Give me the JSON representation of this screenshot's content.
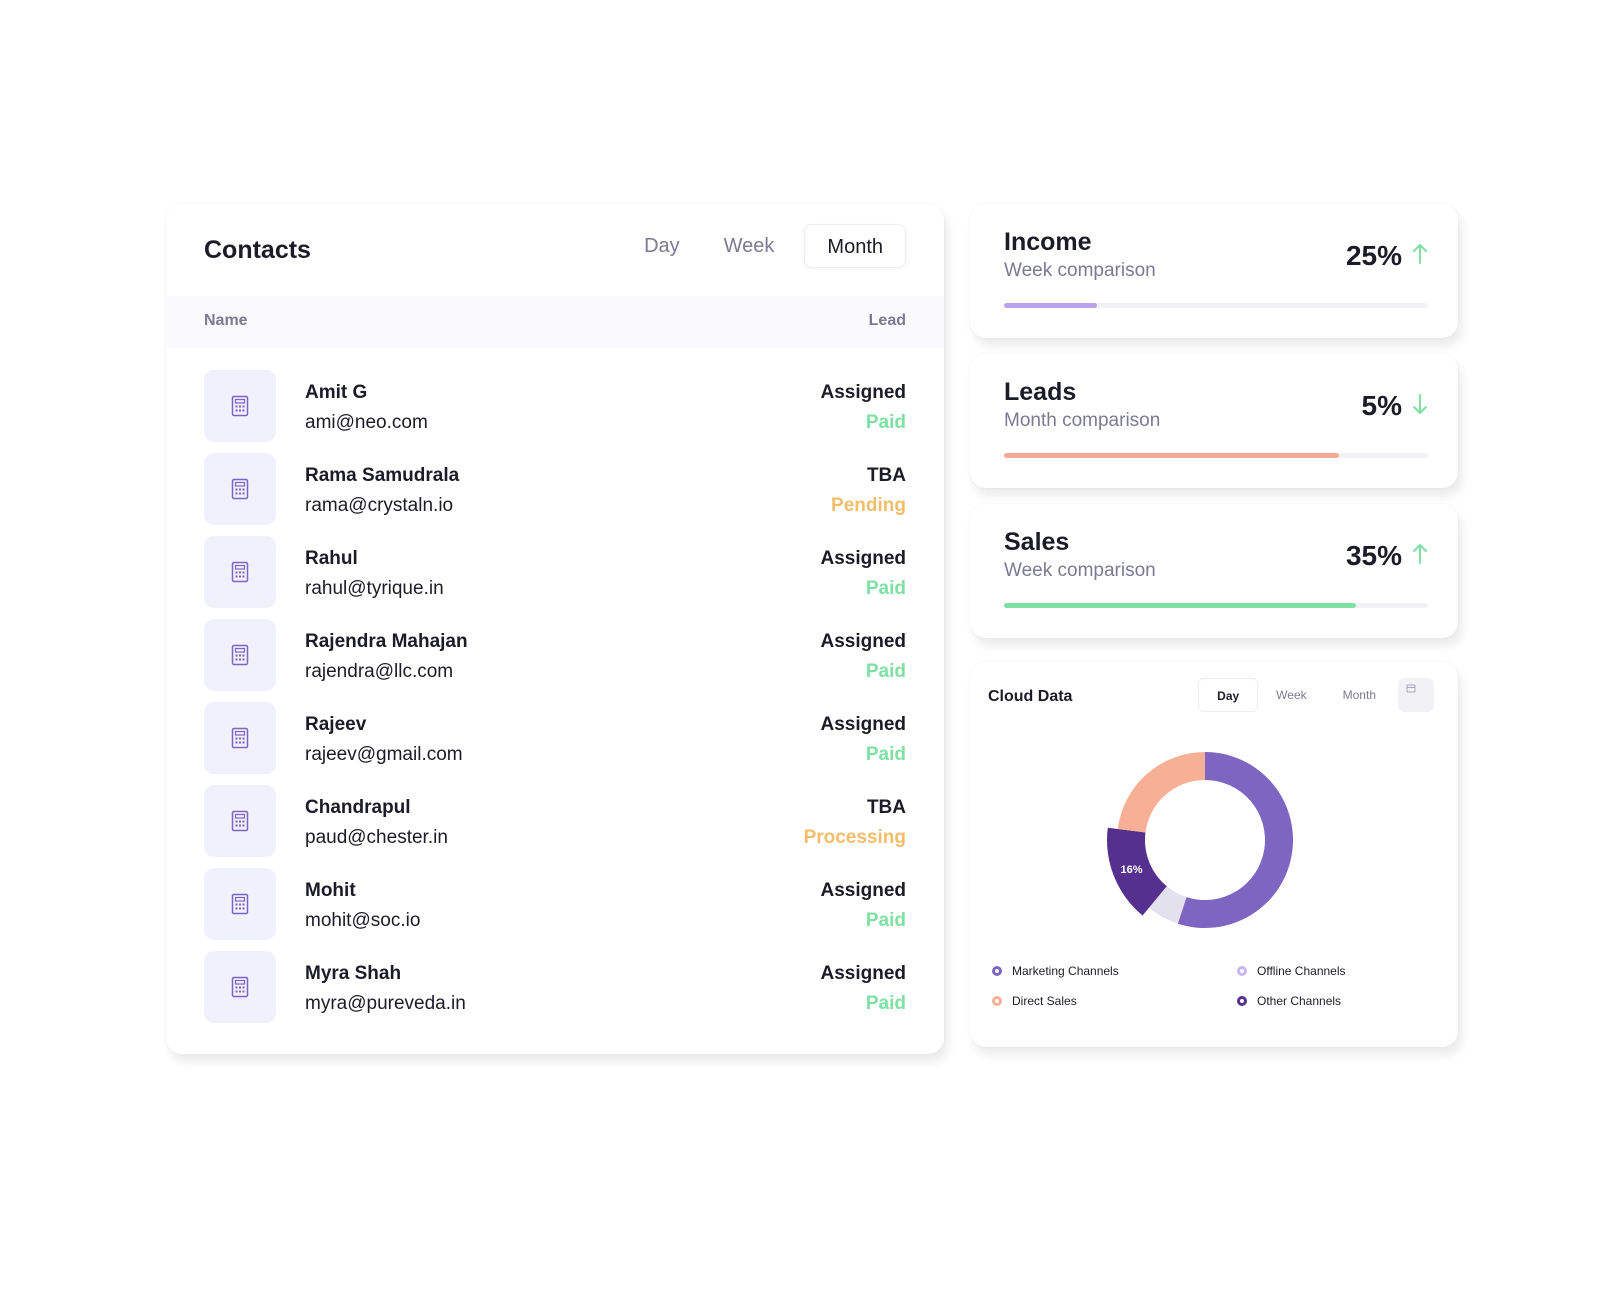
{
  "contacts": {
    "title": "Contacts",
    "tabs": [
      "Day",
      "Week",
      "Month"
    ],
    "active_tab": "Month",
    "columns": {
      "name": "Name",
      "lead": "Lead"
    },
    "rows": [
      {
        "name": "Amit G",
        "email": "ami@neo.com",
        "lead": "Assigned",
        "status": "Paid"
      },
      {
        "name": "Rama Samudrala",
        "email": "rama@crystaln.io",
        "lead": "TBA",
        "status": "Pending"
      },
      {
        "name": "Rahul",
        "email": "rahul@tyrique.in",
        "lead": "Assigned",
        "status": "Paid"
      },
      {
        "name": "Rajendra Mahajan",
        "email": "rajendra@llc.com",
        "lead": "Assigned",
        "status": "Paid"
      },
      {
        "name": "Rajeev",
        "email": "rajeev@gmail.com",
        "lead": "Assigned",
        "status": "Paid"
      },
      {
        "name": "Chandrapul",
        "email": "paud@chester.in",
        "lead": "TBA",
        "status": "Processing"
      },
      {
        "name": "Mohit",
        "email": "mohit@soc.io",
        "lead": "Assigned",
        "status": "Paid"
      },
      {
        "name": "Myra Shah",
        "email": "myra@pureveda.in",
        "lead": "Assigned",
        "status": "Paid"
      }
    ],
    "row_icon": "calculator-icon",
    "status_colors": {
      "Paid": "#7fe0a4",
      "Pending": "#f2bd6d",
      "Processing": "#f2bd6d"
    }
  },
  "stats": {
    "income": {
      "title": "Income",
      "subtitle": "Week comparison",
      "value": "25%",
      "trend": "up",
      "progress": 0.22,
      "color": "#b9a3ec",
      "arrow_color": "#7fe0a4"
    },
    "leads": {
      "title": "Leads",
      "subtitle": "Month comparison",
      "value": "5%",
      "trend": "down",
      "progress": 0.79,
      "color": "#f7ab94",
      "arrow_color": "#7fe0a4"
    },
    "sales": {
      "title": "Sales",
      "subtitle": "Week comparison",
      "value": "35%",
      "trend": "up",
      "progress": 0.83,
      "color": "#7fe0a4",
      "arrow_color": "#7fe0a4"
    }
  },
  "cloud": {
    "title": "Cloud Data",
    "tabs": [
      "Day",
      "Week",
      "Month"
    ],
    "active_tab": "Day",
    "calendar_icon": "calendar-icon",
    "slice_label": "16%"
  },
  "chart_data": {
    "type": "pie",
    "title": "",
    "slices": [
      {
        "name": "Marketing Channels",
        "value": 55,
        "color": "#7f65c2"
      },
      {
        "name": "Offline Channels",
        "value": 6,
        "color": "#e3e1ee"
      },
      {
        "name": "Other Channels",
        "value": 16,
        "color": "#56308e"
      },
      {
        "name": "Direct Sales",
        "value": 23,
        "color": "#f7b095"
      }
    ],
    "legend": [
      {
        "label": "Marketing Channels",
        "color": "#7f65c2"
      },
      {
        "label": "Offline Channels",
        "color": "#c8b6f0"
      },
      {
        "label": "Direct Sales",
        "color": "#f7b095"
      },
      {
        "label": "Other Channels",
        "color": "#56308e"
      }
    ],
    "labeled_slice": "Other Channels",
    "legend_position": "bottom"
  }
}
